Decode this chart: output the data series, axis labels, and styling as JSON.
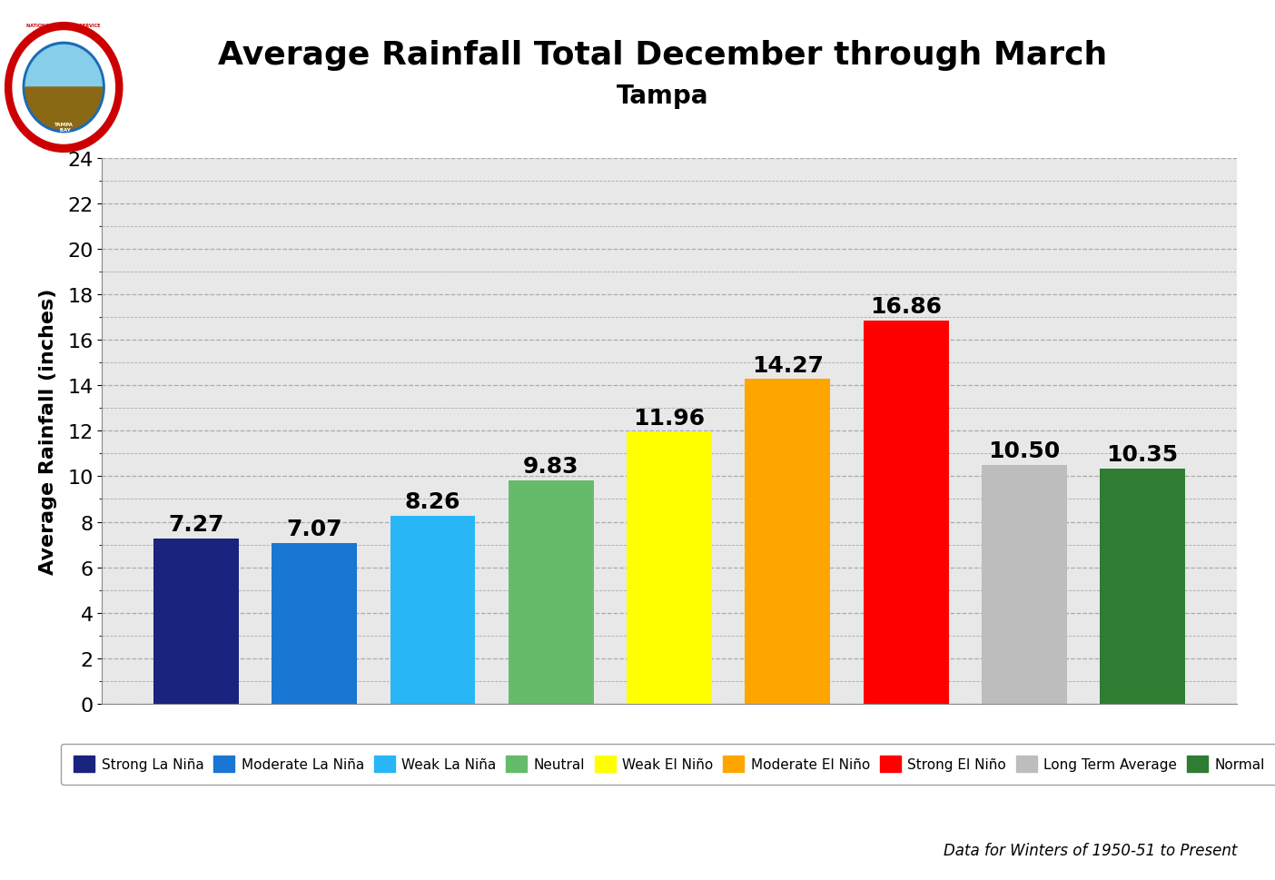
{
  "title": "Average Rainfall Total December through March",
  "subtitle": "Tampa",
  "ylabel": "Average Rainfall (inches)",
  "categories": [
    "Strong La Niña",
    "Moderate La Niña",
    "Weak La Niña",
    "Neutral",
    "Weak El Niño",
    "Moderate El Niño",
    "Strong El Niño",
    "Long Term Average",
    "Normal"
  ],
  "values": [
    7.27,
    7.07,
    8.26,
    9.83,
    11.96,
    14.27,
    16.86,
    10.5,
    10.35
  ],
  "bar_colors": [
    "#1a237e",
    "#1976d2",
    "#29b6f6",
    "#66bb6a",
    "#ffff00",
    "#ffa500",
    "#ff0000",
    "#bdbdbd",
    "#2e7d32"
  ],
  "ylim": [
    0,
    24
  ],
  "yticks": [
    0,
    2,
    4,
    6,
    8,
    10,
    12,
    14,
    16,
    18,
    20,
    22,
    24
  ],
  "legend_labels": [
    "Strong La Niña",
    "Moderate La Niña",
    "Weak La Niña",
    "Neutral",
    "Weak El Niño",
    "Moderate El Niño",
    "Strong El Niño",
    "Long Term Average",
    "Normal"
  ],
  "legend_colors": [
    "#1a237e",
    "#1976d2",
    "#29b6f6",
    "#66bb6a",
    "#ffff00",
    "#ffa500",
    "#ff0000",
    "#bdbdbd",
    "#2e7d32"
  ],
  "footnote": "Data for Winters of 1950-51 to Present",
  "background_color": "#ffffff",
  "plot_bg_color": "#e8e8e8",
  "grid_color": "#aaaaaa",
  "tick_labelsize": 16,
  "ylabel_fontsize": 16,
  "title_fontsize": 26,
  "subtitle_fontsize": 20,
  "value_fontsize": 18,
  "bar_width": 0.72
}
